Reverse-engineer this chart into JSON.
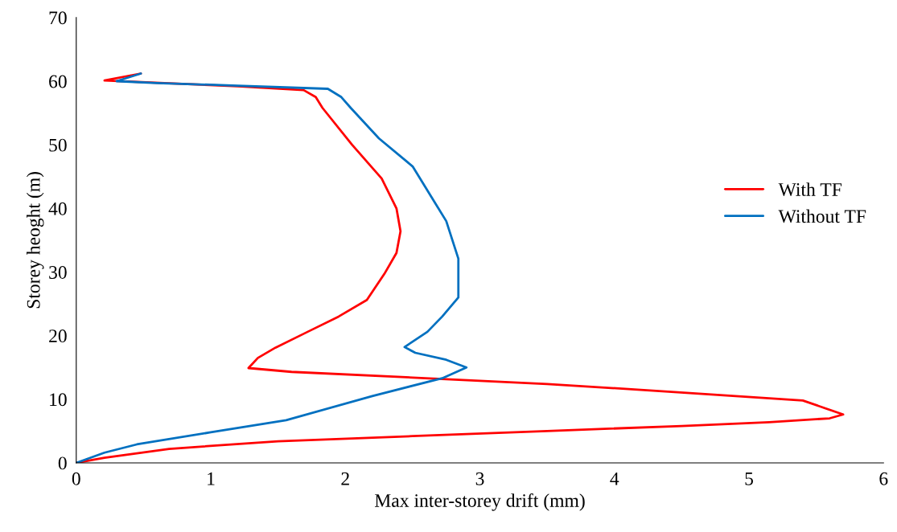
{
  "chart_data": {
    "type": "line",
    "xlabel": "Max inter-storey drift (mm)",
    "ylabel": "Storey heoght (m)",
    "xlim": [
      0,
      6
    ],
    "xticks": [
      0,
      1,
      2,
      3,
      4,
      5,
      6
    ],
    "ylim": [
      0,
      70
    ],
    "yticks": [
      0,
      10,
      20,
      30,
      40,
      50,
      60,
      70
    ],
    "grid": false,
    "legend": "right",
    "marker": "none",
    "line_style": "solid",
    "series": [
      {
        "name": "With TF",
        "color": "#ff0000",
        "x": [
          0,
          0.21,
          0.69,
          1.5,
          2.5,
          3.5,
          4.5,
          5.15,
          5.6,
          5.7,
          5.4,
          4.47,
          3.5,
          2.5,
          1.6,
          1.28,
          1.35,
          1.48,
          1.72,
          1.95,
          2.16,
          2.29,
          2.38,
          2.41,
          2.38,
          2.27,
          2.05,
          1.83,
          1.78,
          1.69,
          1.2,
          0.21,
          0.48
        ],
        "values": [
          0,
          0.8,
          2.2,
          3.4,
          4.2,
          5.0,
          5.8,
          6.4,
          7.0,
          7.6,
          9.8,
          11.1,
          12.4,
          13.4,
          14.3,
          14.9,
          16.5,
          18.1,
          20.6,
          23.0,
          25.6,
          29.7,
          33.0,
          36.4,
          40.0,
          44.7,
          50.0,
          55.8,
          57.5,
          58.6,
          59.2,
          60.1,
          61.2
        ]
      },
      {
        "name": "Without TF",
        "color": "#0070c0",
        "x": [
          0,
          0.21,
          0.45,
          1.0,
          1.56,
          2.2,
          2.72,
          2.9,
          2.75,
          2.52,
          2.44,
          2.61,
          2.72,
          2.84,
          2.84,
          2.75,
          2.5,
          2.25,
          2.04,
          1.97,
          1.87,
          1.2,
          0.6,
          0.3,
          0.48
        ],
        "values": [
          0,
          1.6,
          2.9,
          4.8,
          6.7,
          10.5,
          13.3,
          15.0,
          16.2,
          17.3,
          18.2,
          20.6,
          23.0,
          26.0,
          32.1,
          38.0,
          46.6,
          51.0,
          55.8,
          57.5,
          58.8,
          59.3,
          59.7,
          60.0,
          61.2
        ]
      }
    ]
  }
}
